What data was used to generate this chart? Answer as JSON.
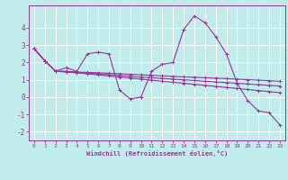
{
  "xlabel": "Windchill (Refroidissement éolien,°C)",
  "xlim": [
    -0.5,
    23.5
  ],
  "ylim": [
    -2.5,
    5.3
  ],
  "yticks": [
    -2,
    -1,
    0,
    1,
    2,
    3,
    4
  ],
  "xticks": [
    0,
    1,
    2,
    3,
    4,
    5,
    6,
    7,
    8,
    9,
    10,
    11,
    12,
    13,
    14,
    15,
    16,
    17,
    18,
    19,
    20,
    21,
    22,
    23
  ],
  "bg_color": "#c0ecec",
  "line_color": "#993399",
  "grid_color": "#ffffff",
  "series": [
    [
      2.8,
      2.1,
      1.5,
      1.7,
      1.5,
      2.5,
      2.6,
      2.5,
      0.4,
      -0.1,
      0.0,
      1.5,
      1.9,
      2.0,
      3.9,
      4.7,
      4.3,
      3.5,
      2.5,
      0.8,
      -0.2,
      -0.8,
      -0.9,
      -1.6
    ],
    [
      2.8,
      2.1,
      1.5,
      1.5,
      1.45,
      1.43,
      1.41,
      1.38,
      1.35,
      1.32,
      1.29,
      1.26,
      1.23,
      1.2,
      1.17,
      1.15,
      1.12,
      1.1,
      1.07,
      1.04,
      1.01,
      0.98,
      0.95,
      0.92
    ],
    [
      2.8,
      2.1,
      1.5,
      1.45,
      1.4,
      1.35,
      1.28,
      1.22,
      1.16,
      1.1,
      1.04,
      0.98,
      0.92,
      0.86,
      0.8,
      0.74,
      0.68,
      0.62,
      0.56,
      0.5,
      0.44,
      0.38,
      0.32,
      0.26
    ],
    [
      2.8,
      2.1,
      1.5,
      1.47,
      1.43,
      1.39,
      1.35,
      1.3,
      1.25,
      1.2,
      1.16,
      1.12,
      1.08,
      1.04,
      1.0,
      0.96,
      0.92,
      0.88,
      0.84,
      0.8,
      0.76,
      0.72,
      0.68,
      0.64
    ]
  ]
}
